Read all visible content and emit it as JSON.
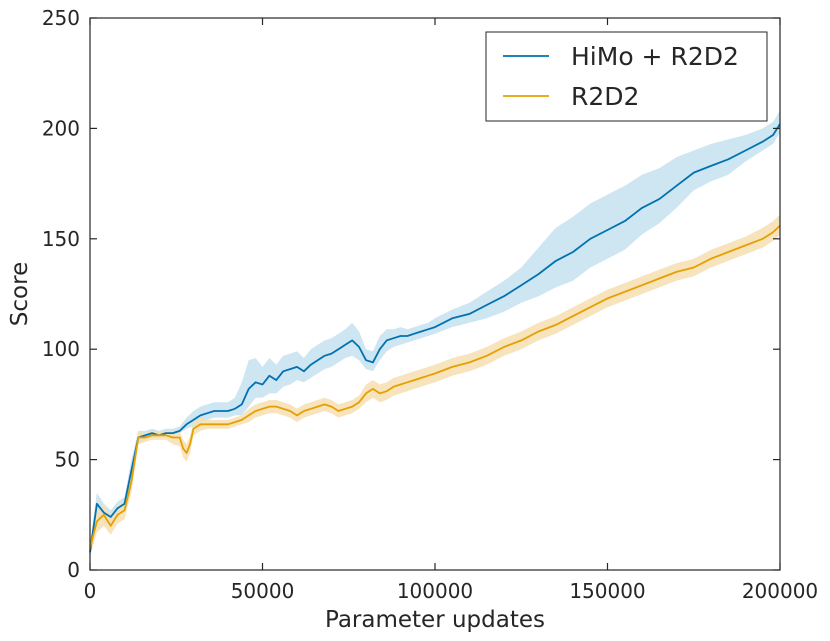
{
  "chart_data": {
    "type": "line",
    "xlabel": "Parameter updates",
    "ylabel": "Score",
    "xlim": [
      0,
      200000
    ],
    "ylim": [
      0,
      250
    ],
    "xticks": [
      0,
      50000,
      100000,
      150000,
      200000
    ],
    "xtick_labels": [
      "0",
      "50000",
      "100000",
      "150000",
      "200000"
    ],
    "yticks": [
      0,
      50,
      100,
      150,
      200,
      250
    ],
    "ytick_labels": [
      "0",
      "50",
      "100",
      "150",
      "200",
      "250"
    ],
    "grid": false,
    "legend_position": "top-right",
    "series": [
      {
        "name": "HiMo + R2D2",
        "color": "#0072b2",
        "band_color": "#c6e0f0",
        "x": [
          0,
          2000,
          4000,
          6000,
          8000,
          10000,
          12000,
          14000,
          16000,
          18000,
          20000,
          22000,
          24000,
          26000,
          28000,
          30000,
          32000,
          34000,
          36000,
          38000,
          40000,
          42000,
          44000,
          46000,
          48000,
          50000,
          52000,
          54000,
          56000,
          58000,
          60000,
          62000,
          64000,
          66000,
          68000,
          70000,
          72000,
          74000,
          76000,
          78000,
          80000,
          82000,
          84000,
          86000,
          88000,
          90000,
          92000,
          94000,
          96000,
          98000,
          100000,
          105000,
          110000,
          115000,
          120000,
          125000,
          130000,
          135000,
          140000,
          145000,
          150000,
          155000,
          160000,
          165000,
          170000,
          175000,
          180000,
          185000,
          190000,
          195000,
          198000,
          200000
        ],
        "values": [
          8,
          30,
          26,
          24,
          28,
          30,
          45,
          60,
          61,
          62,
          61,
          62,
          62,
          63,
          66,
          68,
          70,
          71,
          72,
          72,
          72,
          73,
          75,
          82,
          85,
          84,
          88,
          86,
          90,
          91,
          92,
          90,
          93,
          95,
          97,
          98,
          100,
          102,
          104,
          101,
          95,
          94,
          100,
          104,
          105,
          106,
          106,
          107,
          108,
          109,
          110,
          114,
          116,
          120,
          124,
          129,
          134,
          140,
          144,
          150,
          154,
          158,
          164,
          168,
          174,
          180,
          183,
          186,
          190,
          194,
          197,
          202
        ],
        "lower": [
          5,
          24,
          22,
          21,
          25,
          27,
          40,
          57,
          59,
          60,
          60,
          61,
          61,
          62,
          64,
          65,
          67,
          68,
          69,
          69,
          69,
          70,
          70,
          74,
          78,
          78,
          80,
          80,
          83,
          84,
          86,
          85,
          87,
          89,
          91,
          92,
          94,
          96,
          97,
          95,
          91,
          90,
          95,
          99,
          101,
          102,
          103,
          104,
          105,
          106,
          107,
          110,
          112,
          114,
          117,
          121,
          124,
          128,
          131,
          137,
          141,
          145,
          152,
          157,
          164,
          172,
          176,
          179,
          185,
          190,
          193,
          198
        ],
        "upper": [
          12,
          35,
          30,
          27,
          31,
          33,
          50,
          63,
          63,
          64,
          63,
          64,
          64,
          65,
          69,
          72,
          74,
          75,
          76,
          76,
          76,
          78,
          85,
          95,
          96,
          92,
          96,
          93,
          97,
          98,
          99,
          96,
          100,
          102,
          104,
          105,
          107,
          109,
          112,
          108,
          100,
          99,
          106,
          109,
          109,
          110,
          109,
          110,
          111,
          112,
          114,
          118,
          121,
          126,
          131,
          137,
          146,
          155,
          160,
          166,
          170,
          174,
          179,
          182,
          187,
          190,
          193,
          195,
          197,
          200,
          203,
          208
        ]
      },
      {
        "name": "R2D2",
        "color": "#e69f00",
        "band_color": "#f6dfb2",
        "x": [
          0,
          2000,
          4000,
          6000,
          8000,
          10000,
          12000,
          14000,
          16000,
          18000,
          20000,
          22000,
          24000,
          26000,
          27000,
          28000,
          29000,
          30000,
          32000,
          34000,
          36000,
          38000,
          40000,
          42000,
          44000,
          46000,
          48000,
          50000,
          52000,
          54000,
          56000,
          58000,
          60000,
          62000,
          64000,
          66000,
          68000,
          70000,
          72000,
          74000,
          76000,
          78000,
          80000,
          82000,
          84000,
          86000,
          88000,
          90000,
          92000,
          94000,
          96000,
          98000,
          100000,
          105000,
          110000,
          115000,
          120000,
          125000,
          130000,
          135000,
          140000,
          145000,
          150000,
          155000,
          160000,
          165000,
          170000,
          175000,
          180000,
          185000,
          190000,
          195000,
          198000,
          200000
        ],
        "values": [
          10,
          22,
          25,
          20,
          25,
          27,
          40,
          60,
          60,
          61,
          61,
          61,
          60,
          60,
          55,
          53,
          57,
          64,
          66,
          66,
          66,
          66,
          66,
          67,
          68,
          70,
          72,
          73,
          74,
          74,
          73,
          72,
          70,
          72,
          73,
          74,
          75,
          74,
          72,
          73,
          74,
          76,
          80,
          82,
          80,
          81,
          83,
          84,
          85,
          86,
          87,
          88,
          89,
          92,
          94,
          97,
          101,
          104,
          108,
          111,
          115,
          119,
          123,
          126,
          129,
          132,
          135,
          137,
          141,
          144,
          147,
          150,
          153,
          156
        ],
        "lower": [
          6,
          17,
          20,
          16,
          21,
          23,
          35,
          57,
          58,
          59,
          59,
          59,
          57,
          56,
          51,
          49,
          53,
          61,
          63,
          64,
          64,
          64,
          64,
          65,
          66,
          67,
          69,
          70,
          71,
          71,
          70,
          69,
          67,
          69,
          70,
          71,
          72,
          71,
          69,
          70,
          71,
          73,
          76,
          78,
          76,
          77,
          79,
          80,
          81,
          82,
          83,
          84,
          85,
          88,
          90,
          93,
          97,
          100,
          104,
          107,
          111,
          115,
          119,
          122,
          125,
          128,
          131,
          133,
          137,
          140,
          143,
          146,
          149,
          152
        ],
        "upper": [
          14,
          27,
          30,
          24,
          29,
          31,
          45,
          63,
          62,
          63,
          63,
          63,
          63,
          63,
          59,
          57,
          61,
          67,
          69,
          68,
          68,
          68,
          68,
          69,
          70,
          73,
          75,
          76,
          77,
          77,
          76,
          75,
          73,
          75,
          76,
          77,
          78,
          77,
          75,
          76,
          77,
          79,
          84,
          86,
          84,
          85,
          87,
          88,
          89,
          90,
          91,
          92,
          93,
          96,
          98,
          101,
          105,
          108,
          112,
          115,
          119,
          123,
          127,
          130,
          133,
          136,
          139,
          141,
          145,
          148,
          151,
          155,
          158,
          161
        ]
      }
    ]
  }
}
